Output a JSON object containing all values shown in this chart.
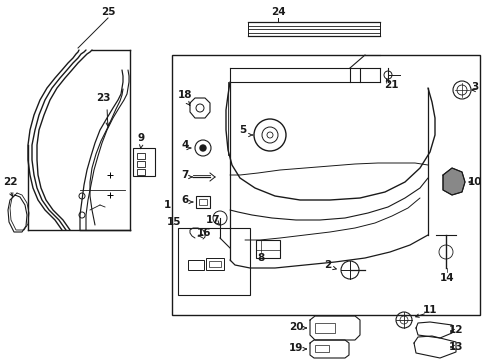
{
  "bg_color": "#ffffff",
  "lc": "#1a1a1a",
  "figsize": [
    4.89,
    3.6
  ],
  "dpi": 100,
  "xlim": [
    0,
    489
  ],
  "ylim": [
    0,
    360
  ]
}
